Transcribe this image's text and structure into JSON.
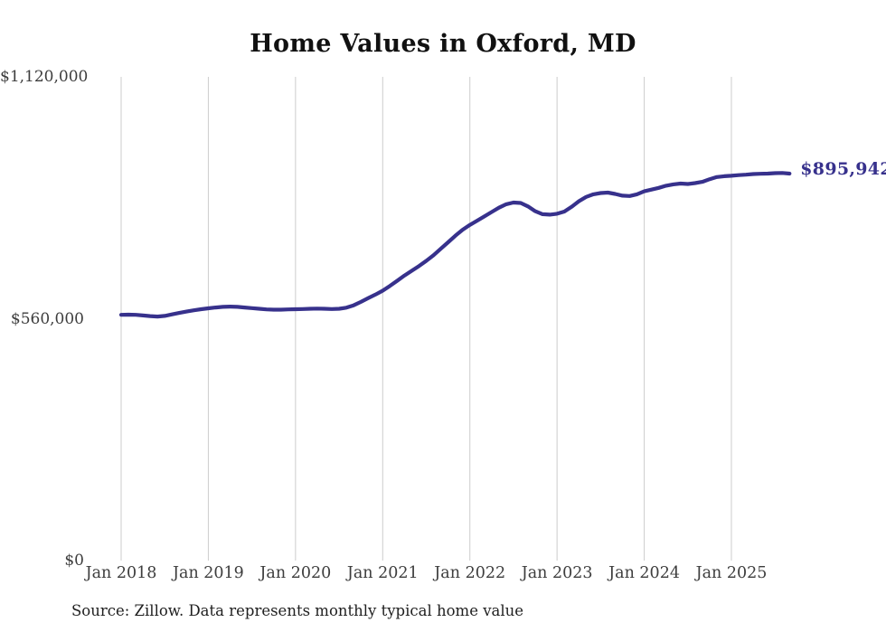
{
  "title": "Home Values in Oxford, MD",
  "source_note": "Source: Zillow. Data represents monthly typical home value",
  "latest_value_label": "$895,942",
  "colors": {
    "line": "#37318c",
    "grid": "#cccccc",
    "tick_text": "#3d3d3d",
    "title_text": "#111111",
    "annotation_text": "#37318c"
  },
  "chart_data": {
    "type": "line",
    "title": "Home Values in Oxford, MD",
    "ylabel": "",
    "xlabel": "",
    "ylim": [
      0,
      1120000
    ],
    "grid": "vertical-only",
    "legend": "none",
    "y_ticks": [
      {
        "label": "$0",
        "value": 0
      },
      {
        "label": "$560,000",
        "value": 560000
      },
      {
        "label": "$1,120,000",
        "value": 1120000
      }
    ],
    "x_ticks": [
      {
        "label": "Jan 2018",
        "month": "2018-01"
      },
      {
        "label": "Jan 2019",
        "month": "2019-01"
      },
      {
        "label": "Jan 2020",
        "month": "2020-01"
      },
      {
        "label": "Jan 2021",
        "month": "2021-01"
      },
      {
        "label": "Jan 2022",
        "month": "2022-01"
      },
      {
        "label": "Jan 2023",
        "month": "2023-01"
      },
      {
        "label": "Jan 2024",
        "month": "2024-01"
      },
      {
        "label": "Jan 2025",
        "month": "2025-01"
      }
    ],
    "x": [
      "2018-01",
      "2018-02",
      "2018-03",
      "2018-04",
      "2018-05",
      "2018-06",
      "2018-07",
      "2018-08",
      "2018-09",
      "2018-10",
      "2018-11",
      "2018-12",
      "2019-01",
      "2019-02",
      "2019-03",
      "2019-04",
      "2019-05",
      "2019-06",
      "2019-07",
      "2019-08",
      "2019-09",
      "2019-10",
      "2019-11",
      "2019-12",
      "2020-01",
      "2020-02",
      "2020-03",
      "2020-04",
      "2020-05",
      "2020-06",
      "2020-07",
      "2020-08",
      "2020-09",
      "2020-10",
      "2020-11",
      "2020-12",
      "2021-01",
      "2021-02",
      "2021-03",
      "2021-04",
      "2021-05",
      "2021-06",
      "2021-07",
      "2021-08",
      "2021-09",
      "2021-10",
      "2021-11",
      "2021-12",
      "2022-01",
      "2022-02",
      "2022-03",
      "2022-04",
      "2022-05",
      "2022-06",
      "2022-07",
      "2022-08",
      "2022-09",
      "2022-10",
      "2022-11",
      "2022-12",
      "2023-01",
      "2023-02",
      "2023-03",
      "2023-04",
      "2023-05",
      "2023-06",
      "2023-07",
      "2023-08",
      "2023-09",
      "2023-10",
      "2023-11",
      "2023-12",
      "2024-01",
      "2024-02",
      "2024-03",
      "2024-04",
      "2024-05",
      "2024-06",
      "2024-07",
      "2024-08",
      "2024-09",
      "2024-10",
      "2024-11",
      "2024-12",
      "2025-01",
      "2025-02",
      "2025-03",
      "2025-04",
      "2025-05",
      "2025-06",
      "2025-07",
      "2025-08",
      "2025-09"
    ],
    "values": [
      569000,
      569500,
      569000,
      567500,
      566000,
      565000,
      566500,
      570000,
      573500,
      576500,
      579500,
      582000,
      584000,
      586000,
      587500,
      588000,
      587500,
      586000,
      584500,
      583000,
      581500,
      581000,
      581000,
      581500,
      582000,
      582500,
      583000,
      583500,
      583000,
      582500,
      583000,
      585500,
      591000,
      599000,
      607500,
      616000,
      625000,
      636000,
      648000,
      660000,
      671000,
      682000,
      694000,
      707000,
      722000,
      737000,
      752000,
      766000,
      777000,
      787000,
      797000,
      807000,
      817000,
      825000,
      829000,
      828000,
      820000,
      809000,
      802000,
      801000,
      803000,
      808000,
      819000,
      832000,
      842000,
      848000,
      851000,
      852000,
      849000,
      845000,
      844000,
      848000,
      855000,
      859000,
      863000,
      868000,
      871000,
      873000,
      872000,
      874000,
      877000,
      883000,
      888000,
      890000,
      891000,
      892500,
      893500,
      895000,
      895500,
      896000,
      897000,
      897500,
      895942
    ],
    "annotation": {
      "text": "$895,942",
      "value": 895942,
      "x": "2025-09"
    }
  }
}
